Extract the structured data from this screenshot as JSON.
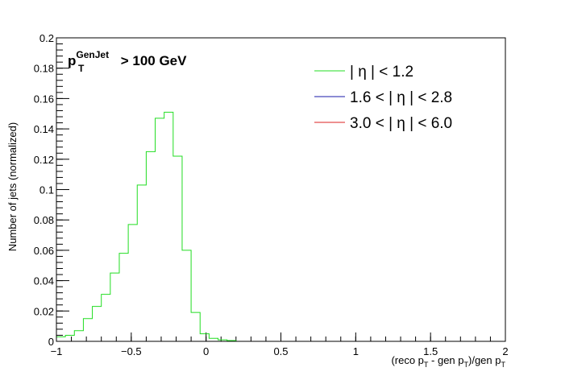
{
  "chart_data": {
    "type": "step-histogram",
    "annotation": {
      "base": "p",
      "superscript": "GenJet",
      "subscript": "T",
      "rest": " > 100 GeV"
    },
    "xlabel": {
      "p1": "(reco p",
      "s1": "T",
      "p2": " - gen p",
      "s2": "T",
      "p3": ")/gen p",
      "s3": "T"
    },
    "ylabel": "Number of jets (normalized)",
    "xlim": [
      -1,
      2
    ],
    "ylim": [
      0,
      0.2
    ],
    "x_ticks": [
      {
        "value": -1,
        "label": "−1"
      },
      {
        "value": -0.5,
        "label": "−0.5"
      },
      {
        "value": 0,
        "label": "0"
      },
      {
        "value": 0.5,
        "label": "0.5"
      },
      {
        "value": 1,
        "label": "1"
      },
      {
        "value": 1.5,
        "label": "1.5"
      },
      {
        "value": 2,
        "label": "2"
      }
    ],
    "y_ticks": [
      {
        "value": 0,
        "label": "0"
      },
      {
        "value": 0.02,
        "label": "0.02"
      },
      {
        "value": 0.04,
        "label": "0.04"
      },
      {
        "value": 0.06,
        "label": "0.06"
      },
      {
        "value": 0.08,
        "label": "0.08"
      },
      {
        "value": 0.1,
        "label": "0.1"
      },
      {
        "value": 0.12,
        "label": "0.12"
      },
      {
        "value": 0.14,
        "label": "0.14"
      },
      {
        "value": 0.16,
        "label": "0.16"
      },
      {
        "value": 0.18,
        "label": "0.18"
      },
      {
        "value": 0.2,
        "label": "0.2"
      }
    ],
    "legend_placement": "top-right",
    "series": [
      {
        "name": "| η | < 1.2",
        "color": "#22dd22",
        "bin_edges": [
          -1.0,
          -0.94,
          -0.88,
          -0.82,
          -0.76,
          -0.7,
          -0.64,
          -0.58,
          -0.52,
          -0.46,
          -0.4,
          -0.34,
          -0.28,
          -0.22,
          -0.16,
          -0.1,
          -0.04,
          0.02,
          0.08,
          0.14,
          0.2
        ],
        "values": [
          0.003,
          0.004,
          0.007,
          0.015,
          0.023,
          0.031,
          0.045,
          0.058,
          0.077,
          0.103,
          0.125,
          0.147,
          0.151,
          0.122,
          0.06,
          0.019,
          0.005,
          0.002,
          0.001,
          0.0005
        ]
      },
      {
        "name": "1.6 < | η | < 2.8",
        "color": "#1a1aa8",
        "bin_edges": [],
        "values": []
      },
      {
        "name": "3.0 < | η | < 6.0",
        "color": "#dd2222",
        "bin_edges": [],
        "values": []
      }
    ]
  }
}
